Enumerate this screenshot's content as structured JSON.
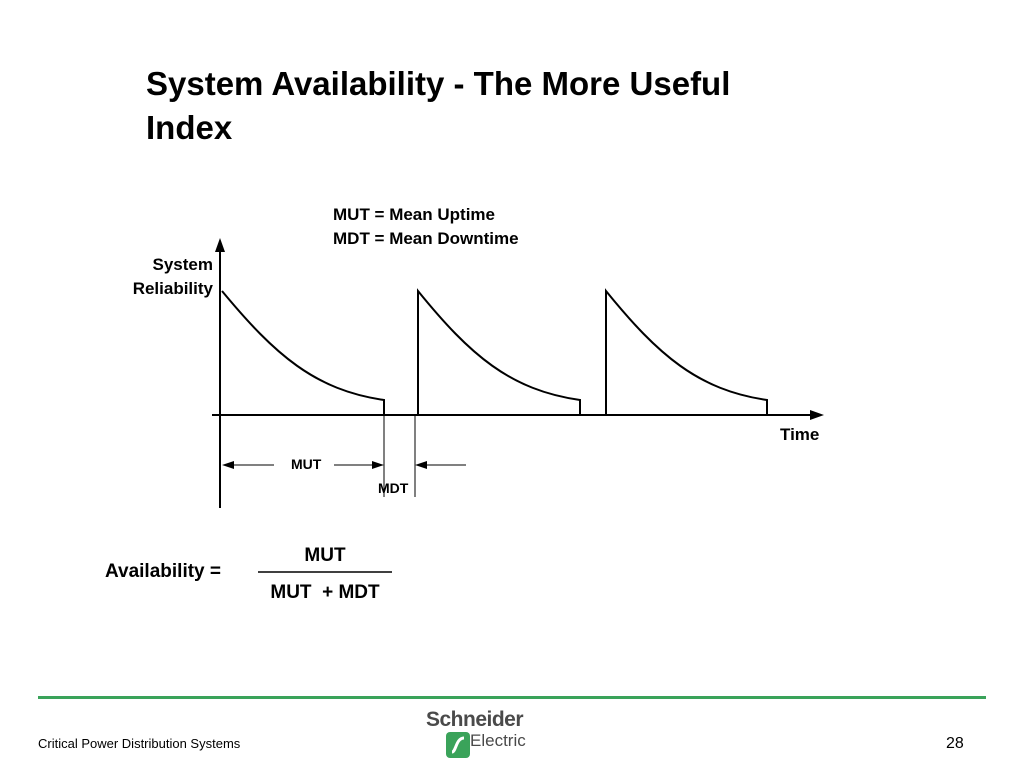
{
  "slide": {
    "title_lines": [
      "System Availability - The More Useful",
      "Index"
    ]
  },
  "diagram": {
    "legend": [
      "MUT = Mean Uptime",
      "MDT = Mean Downtime"
    ],
    "y_axis_label_lines": [
      "System",
      "Reliability"
    ],
    "x_axis_label": "Time",
    "mut_label": "MUT",
    "mdt_label": "MDT"
  },
  "formula": {
    "lhs": "Availability =",
    "numerator": "MUT",
    "denominator": "MUT  + MDT"
  },
  "footer": {
    "left_text": "Critical Power Distribution Systems",
    "page_number": "28",
    "logo_line1": "Schneider",
    "logo_line2": "Electric",
    "rule_color": "#3aa35a",
    "logo_color": "#3aa35a"
  }
}
